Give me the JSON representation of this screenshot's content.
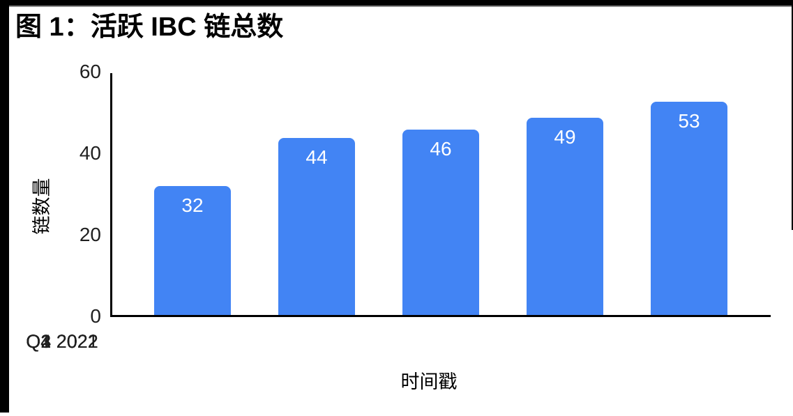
{
  "window": {
    "frame_color": "#000000",
    "frame_shadow_color": "#8a8a8a"
  },
  "header": {
    "title": "图 1：活跃 IBC 链总数"
  },
  "chart_data": {
    "type": "bar",
    "title": "图 1：活跃 IBC 链总数",
    "categories": [
      "Q4 2021",
      "Q1 2022",
      "Q2 2022",
      "Q3 2022",
      "Q4 2022"
    ],
    "values": [
      32,
      44,
      46,
      49,
      53
    ],
    "value_labels": [
      "32",
      "44",
      "46",
      "49",
      "53"
    ],
    "xlabel": "时间戳",
    "ylabel": "链数量",
    "ylim": [
      0,
      60
    ],
    "yticks": [
      60,
      40,
      20,
      0
    ],
    "ytick_labels": [
      "60",
      "40",
      "20",
      "0"
    ],
    "grid": false,
    "legend_position": "none",
    "bar_color": "#4284F4",
    "value_label_color": "#FFFFFF",
    "axis_color": "#000000",
    "text_color": "#1F1F1F"
  }
}
